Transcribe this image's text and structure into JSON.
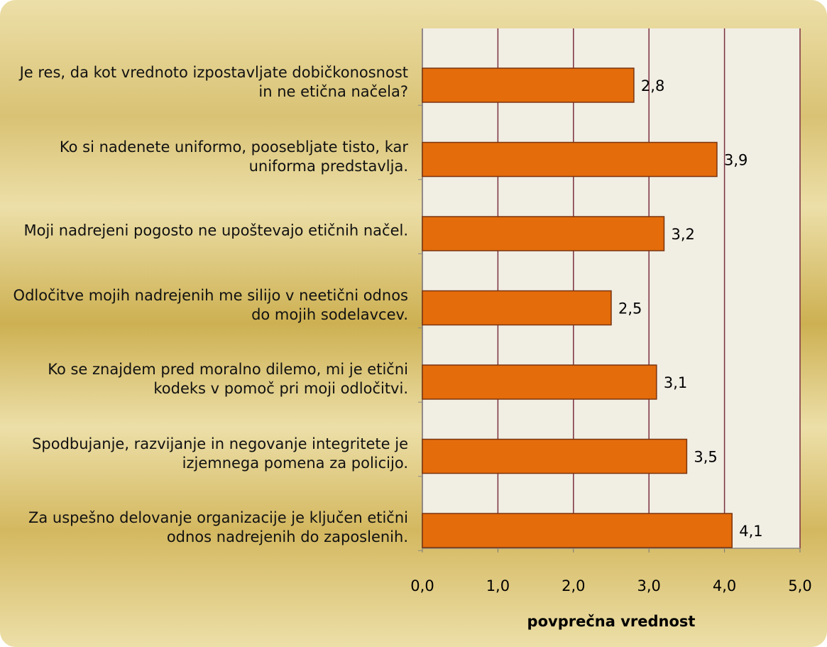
{
  "chart_data": {
    "type": "bar",
    "orientation": "horizontal",
    "categories": [
      "Je res, da kot vrednoto izpostavljate dobičkonosnost in ne etična načela?",
      "Ko si nadenete uniformo, poosebljate tisto, kar uniforma predstavlja.",
      "Moji nadrejeni pogosto ne upoštevajo etičnih načel.",
      "Odločitve mojih nadrejenih me silijo v neetični odnos do mojih sodelavcev.",
      "Ko se znajdem pred moralno dilemo, mi je etični kodeks v pomoč pri moji odločitvi.",
      "Spodbujanje, razvijanje in negovanje integritete je izjemnega pomena za policijo.",
      "Za uspešno delovanje organizacije je ključen etični odnos nadrejenih do zaposlenih."
    ],
    "values": [
      2.8,
      3.9,
      3.2,
      2.5,
      3.1,
      3.5,
      4.1
    ],
    "value_labels": [
      "2,8",
      "3,9",
      "3,2",
      "2,5",
      "3,1",
      "3,5",
      "4,1"
    ],
    "color": "#e46c0a",
    "xlim": [
      0,
      5
    ],
    "xticks": [
      {
        "value": 0,
        "label": "0,0"
      },
      {
        "value": 1,
        "label": "1,0"
      },
      {
        "value": 2,
        "label": "2,0"
      },
      {
        "value": 3,
        "label": "3,0"
      },
      {
        "value": 4,
        "label": "4,0"
      },
      {
        "value": 5,
        "label": "5,0"
      }
    ],
    "x_label": "povprečna vrednost",
    "grid": true
  }
}
